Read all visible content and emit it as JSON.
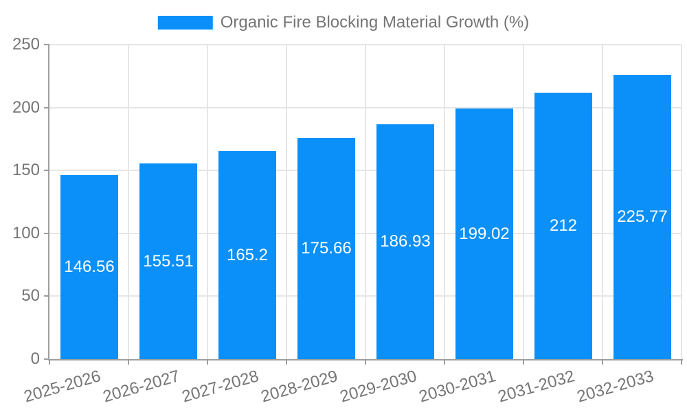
{
  "chart_data": {
    "type": "bar",
    "title": "Organic Fire Blocking Material Growth (%)",
    "legend": {
      "label": "Organic Fire Blocking Material Growth (%)",
      "position": "top"
    },
    "categories": [
      "2025-2026",
      "2026-2027",
      "2027-2028",
      "2028-2029",
      "2029-2030",
      "2030-2031",
      "2031-2032",
      "2032-2033"
    ],
    "values": [
      146.56,
      155.51,
      165.2,
      175.66,
      186.93,
      199.02,
      212,
      225.77
    ],
    "value_labels": [
      "146.56",
      "155.51",
      "165.2",
      "175.66",
      "186.93",
      "199.02",
      "212",
      "225.77"
    ],
    "xlabel": "",
    "ylabel": "",
    "ylim": [
      0,
      250
    ],
    "yticks": [
      0,
      50,
      100,
      150,
      200,
      250
    ],
    "grid": true,
    "xtick_rotation_deg": -16,
    "colors": {
      "bar": "#0a90f8",
      "axis": "#9e9e9e",
      "grid": "#e6e6e6",
      "tick_label": "#757575",
      "value_label": "#ffffff"
    }
  }
}
